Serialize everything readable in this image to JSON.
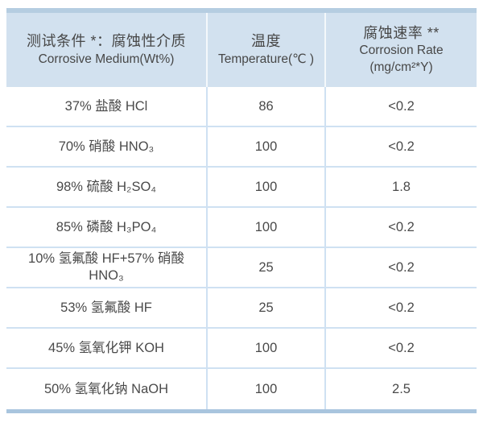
{
  "colors": {
    "header_fill": "#d2e1ef",
    "header_top_strip": "#b5cde1",
    "row_divider": "#cfe1f2",
    "bottom_border": "#a9c5de",
    "text": "#4a4a4a"
  },
  "chart_data": {
    "type": "table",
    "header": {
      "col1": {
        "zh": "测试条件 *：腐蚀性介质",
        "en": "Corrosive Medium(Wt%)"
      },
      "col2": {
        "zh": "温度",
        "en": "Temperature(℃ )"
      },
      "col3": {
        "zh": "腐蚀速率 **",
        "en": "Corrosion Rate",
        "unit": "(mg/cm²*Y)"
      }
    },
    "rows": [
      {
        "medium": "37% 盐酸 HCl",
        "temperature": "86",
        "rate": "<0.2"
      },
      {
        "medium": "70% 硝酸 HNO₃",
        "temperature": "100",
        "rate": "<0.2"
      },
      {
        "medium": "98% 硫酸 H₂SO₄",
        "temperature": "100",
        "rate": "1.8"
      },
      {
        "medium": "85% 磷酸 H₃PO₄",
        "temperature": "100",
        "rate": "<0.2"
      },
      {
        "medium": "10% 氢氟酸 HF+57% 硝酸\nHNO₃",
        "temperature": "25",
        "rate": "<0.2"
      },
      {
        "medium": "53% 氢氟酸 HF",
        "temperature": "25",
        "rate": "<0.2"
      },
      {
        "medium": "45% 氢氧化钾 KOH",
        "temperature": "100",
        "rate": "<0.2"
      },
      {
        "medium": "50% 氢氧化钠 NaOH",
        "temperature": "100",
        "rate": "2.5"
      }
    ]
  }
}
